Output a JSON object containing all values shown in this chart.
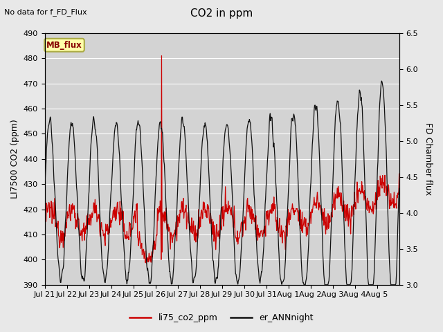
{
  "title": "CO2 in ppm",
  "top_left_text": "No data for f_FD_Flux",
  "ylabel_left": "LI7500 CO2 (ppm)",
  "ylabel_right": "FD Chamber flux",
  "ylim_left": [
    390,
    490
  ],
  "ylim_right": [
    3.0,
    6.5
  ],
  "yticks_left": [
    390,
    400,
    410,
    420,
    430,
    440,
    450,
    460,
    470,
    480,
    490
  ],
  "yticks_right": [
    3.0,
    3.5,
    4.0,
    4.5,
    5.0,
    5.5,
    6.0,
    6.5
  ],
  "xtick_labels": [
    "Jul 21",
    "Jul 22",
    "Jul 23",
    "Jul 24",
    "Jul 25",
    "Jul 26",
    "Jul 27",
    "Jul 28",
    "Jul 29",
    "Jul 30",
    "Jul 31",
    "Aug 1",
    "Aug 2",
    "Aug 3",
    "Aug 4",
    "Aug 5"
  ],
  "legend_labels": [
    "li75_co2_ppm",
    "er_ANNnight"
  ],
  "legend_colors": [
    "#cc0000",
    "#111111"
  ],
  "fig_bg_color": "#e8e8e8",
  "plot_bg_color": "#d3d3d3",
  "mb_flux_box_color": "#ffffaa",
  "mb_flux_text_color": "#880000",
  "mb_flux_border_color": "#aaaa44",
  "grid_color": "#ffffff",
  "line_color_red": "#cc0000",
  "line_color_black": "#111111",
  "n_days": 16,
  "pts_per_day": 48
}
